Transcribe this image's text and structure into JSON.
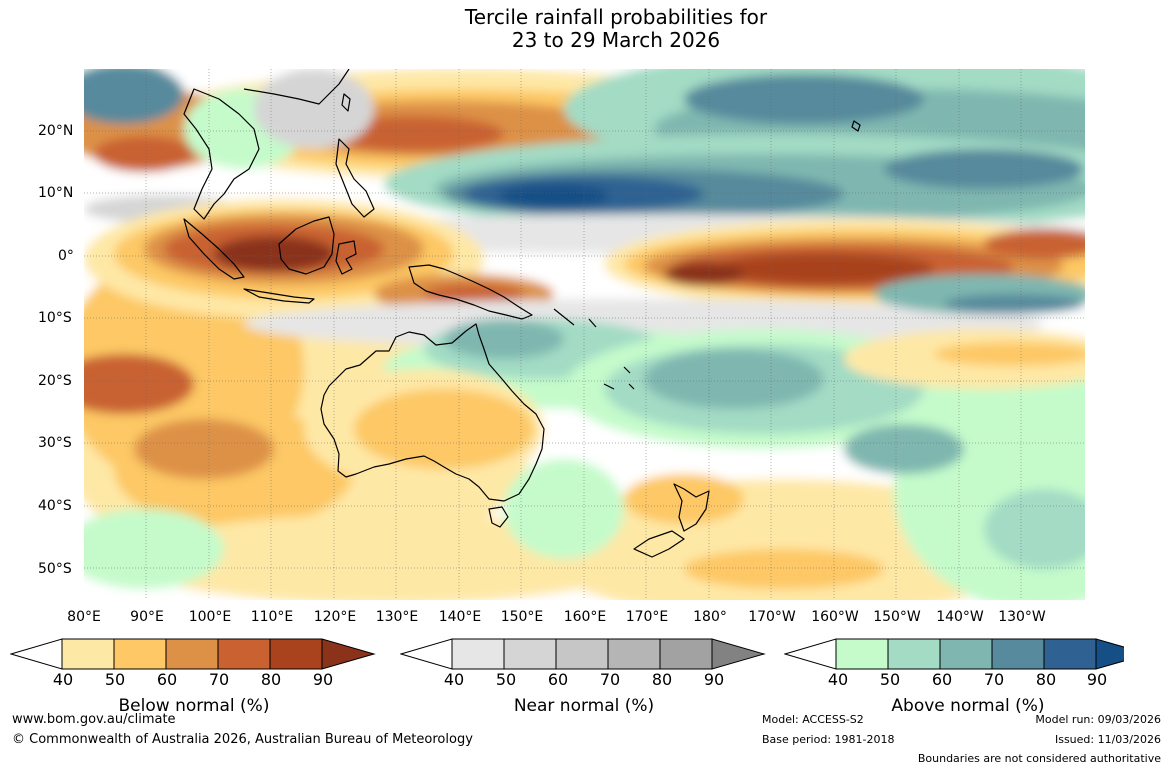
{
  "title": {
    "line1": "Tercile rainfall probabilities for",
    "line2": "23 to 29 March 2026"
  },
  "lat_labels": [
    "20°N",
    "10°N",
    "0°",
    "10°S",
    "20°S",
    "30°S",
    "40°S",
    "50°S"
  ],
  "lon_labels": [
    "80°E",
    "90°E",
    "100°E",
    "110°E",
    "120°E",
    "130°E",
    "140°E",
    "150°E",
    "160°E",
    "170°E",
    "180°",
    "170°W",
    "160°W",
    "150°W",
    "140°W",
    "130°W"
  ],
  "legends": [
    {
      "label": "Below normal (%)",
      "ticks": [
        "40",
        "50",
        "60",
        "70",
        "80",
        "90"
      ],
      "colors": [
        "#ffffff",
        "#fee8a6",
        "#fdc865",
        "#dd9147",
        "#c96230",
        "#a8431e",
        "#8a331a"
      ]
    },
    {
      "label": "Near normal (%)",
      "ticks": [
        "40",
        "50",
        "60",
        "70",
        "80",
        "90"
      ],
      "colors": [
        "#ffffff",
        "#e6e6e6",
        "#d5d5d5",
        "#c6c6c6",
        "#b5b5b5",
        "#a2a2a2",
        "#828282"
      ]
    },
    {
      "label": "Above normal (%)",
      "ticks": [
        "40",
        "50",
        "60",
        "70",
        "80",
        "90"
      ],
      "colors": [
        "#ffffff",
        "#c5fbcb",
        "#a3dbc5",
        "#7fb7b0",
        "#568a9c",
        "#2f6292",
        "#164f86"
      ]
    }
  ],
  "footer": {
    "website": "www.bom.gov.au/climate",
    "copyright": "© Commonwealth of Australia 2026, Australian Bureau of Meteorology",
    "model": "Model: ACCESS-S2",
    "base_period": "Base period: 1981-2018",
    "model_run": "Model run: 09/03/2026",
    "issued": "Issued: 11/03/2026",
    "disclaimer": "Boundaries are not considered authoritative"
  }
}
